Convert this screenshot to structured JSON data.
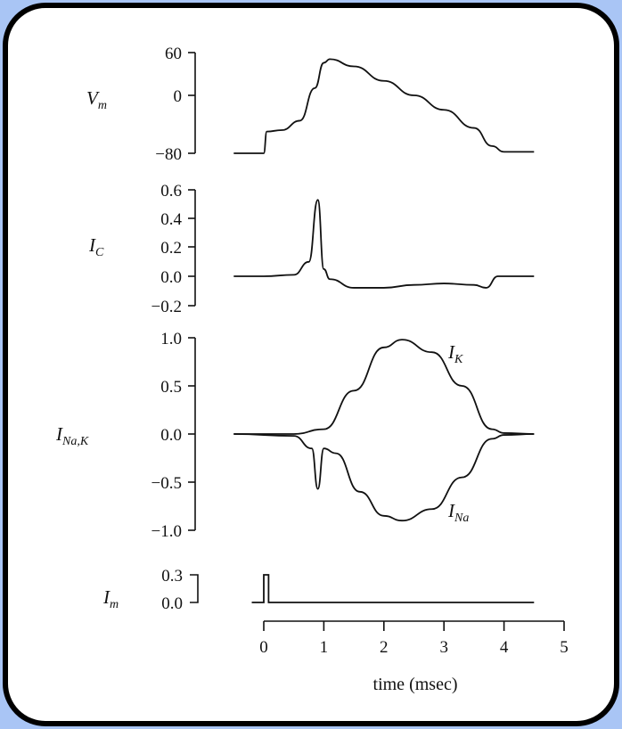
{
  "figure": {
    "panels": {
      "vm": {
        "label": "V",
        "label_sub": "m",
        "ticks": [
          "60",
          "0",
          "−80"
        ]
      },
      "ic": {
        "label": "I",
        "label_sub": "C",
        "ticks": [
          "0.6",
          "0.4",
          "0.2",
          "0.0",
          "−0.2"
        ]
      },
      "inak": {
        "label": "I",
        "label_sub": "Na,K",
        "ticks": [
          "1.0",
          "0.5",
          "0.0",
          "−0.5",
          "−1.0"
        ],
        "curve_label_k": "I",
        "curve_label_k_sub": "K",
        "curve_label_na": "I",
        "curve_label_na_sub": "Na"
      },
      "im": {
        "label": "I",
        "label_sub": "m",
        "ticks": [
          "0.3",
          "0.0"
        ]
      }
    },
    "xaxis": {
      "ticks": [
        "0",
        "1",
        "2",
        "3",
        "4",
        "5"
      ],
      "label": "time (msec)"
    }
  },
  "chart_data": [
    {
      "type": "line",
      "title": "Membrane potential",
      "ylabel": "V_m",
      "xlabel": "time (msec)",
      "ylim": [
        -80,
        60
      ],
      "x": [
        -0.5,
        0,
        0.05,
        0.3,
        0.6,
        0.85,
        1.0,
        1.1,
        1.5,
        2.0,
        2.5,
        3.0,
        3.5,
        3.8,
        4.0,
        4.5
      ],
      "values": [
        -80,
        -80,
        -50,
        -48,
        -35,
        10,
        45,
        50,
        40,
        20,
        0,
        -20,
        -45,
        -70,
        -78,
        -78
      ]
    },
    {
      "type": "line",
      "title": "Capacitive current",
      "ylabel": "I_C",
      "ylim": [
        -0.2,
        0.6
      ],
      "x": [
        -0.5,
        0,
        0.5,
        0.75,
        0.9,
        1.0,
        1.1,
        1.5,
        2.0,
        2.5,
        3.0,
        3.5,
        3.7,
        3.9,
        4.5
      ],
      "values": [
        0,
        0,
        0.01,
        0.1,
        0.53,
        0.05,
        -0.02,
        -0.08,
        -0.08,
        -0.06,
        -0.05,
        -0.06,
        -0.08,
        0.0,
        0.0
      ]
    },
    {
      "type": "line",
      "title": "Ionic currents",
      "ylabel": "I_Na,K",
      "ylim": [
        -1.0,
        1.0
      ],
      "series": [
        {
          "name": "I_K",
          "x": [
            -0.5,
            0.5,
            1.0,
            1.5,
            2.0,
            2.3,
            2.8,
            3.3,
            3.8,
            4.0,
            4.5
          ],
          "values": [
            0,
            0,
            0.05,
            0.45,
            0.9,
            0.98,
            0.85,
            0.5,
            0.05,
            0.01,
            0.0
          ]
        },
        {
          "name": "I_Na",
          "x": [
            -0.5,
            0.5,
            0.8,
            0.9,
            1.0,
            1.2,
            1.6,
            2.0,
            2.3,
            2.8,
            3.3,
            3.8,
            4.0,
            4.5
          ],
          "values": [
            0,
            -0.02,
            -0.15,
            -0.57,
            -0.15,
            -0.2,
            -0.6,
            -0.85,
            -0.9,
            -0.78,
            -0.45,
            -0.05,
            -0.01,
            0.0
          ]
        }
      ]
    },
    {
      "type": "line",
      "title": "Stimulus current",
      "ylabel": "I_m",
      "ylim": [
        0.0,
        0.3
      ],
      "x": [
        -0.2,
        0,
        0,
        0.08,
        0.08,
        4.5
      ],
      "values": [
        0,
        0,
        0.3,
        0.3,
        0,
        0
      ]
    }
  ]
}
